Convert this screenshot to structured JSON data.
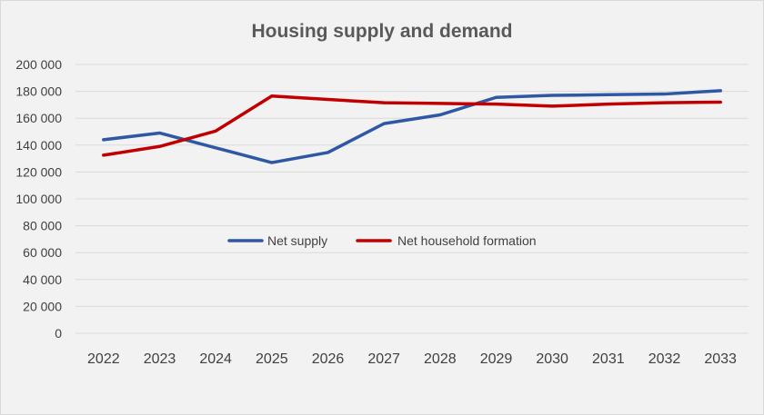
{
  "chart_data": {
    "type": "line",
    "title": "Housing supply and demand",
    "categories": [
      "2022",
      "2023",
      "2024",
      "2025",
      "2026",
      "2027",
      "2028",
      "2029",
      "2030",
      "2031",
      "2032",
      "2033"
    ],
    "series": [
      {
        "name": "Net supply",
        "color": "#2e58a4",
        "values": [
          144000,
          149000,
          138000,
          127000,
          134500,
          156000,
          162500,
          175500,
          177000,
          177500,
          178000,
          180500
        ]
      },
      {
        "name": "Net household formation",
        "color": "#c00000",
        "values": [
          132500,
          139000,
          150500,
          176500,
          174000,
          171500,
          171000,
          170500,
          169000,
          170500,
          171500,
          172000
        ]
      }
    ],
    "ylim": [
      0,
      200000
    ],
    "yticks": [
      0,
      20000,
      40000,
      60000,
      80000,
      100000,
      120000,
      140000,
      160000,
      180000,
      200000
    ],
    "ytick_labels": [
      "0",
      "20 000",
      "40 000",
      "60 000",
      "80 000",
      "100 000",
      "120 000",
      "140 000",
      "160 000",
      "180 000",
      "200 000"
    ],
    "grid": true,
    "legend_position": "inside-center"
  }
}
